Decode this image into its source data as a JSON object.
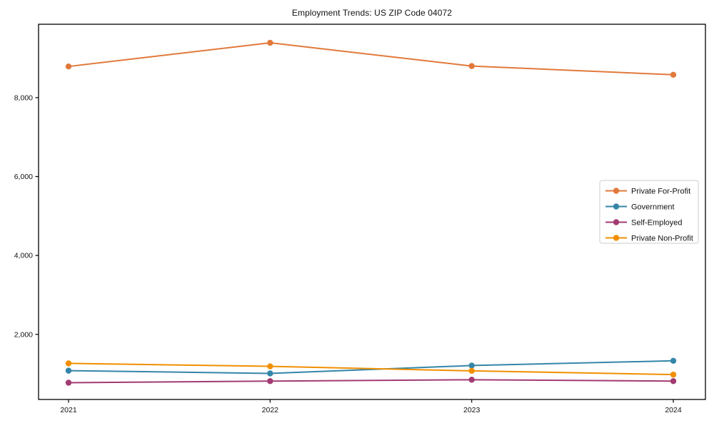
{
  "figure": {
    "background": "#ffffff",
    "text_color": "#111111",
    "axis_color": "#000000",
    "legend_border_color": "#cccccc"
  },
  "chart_data": {
    "type": "line",
    "title": "Employment Trends: US ZIP Code 04072",
    "categories": [
      "2021",
      "2022",
      "2023",
      "2024"
    ],
    "series": [
      {
        "name": "Private For-Profit",
        "color": "#E1793B",
        "values": [
          8790,
          9390,
          8800,
          8580
        ]
      },
      {
        "name": "Government",
        "color": "#3486A8",
        "values": [
          1080,
          1010,
          1210,
          1330
        ]
      },
      {
        "name": "Self-Employed",
        "color": "#A23B72",
        "values": [
          775,
          815,
          850,
          815
        ]
      },
      {
        "name": "Private Non-Profit",
        "color": "#F18F01",
        "values": [
          1265,
          1190,
          1075,
          980
        ]
      }
    ],
    "xlabel": "",
    "ylabel": "",
    "ylim": [
      350,
      9860
    ],
    "yticks": [
      2000,
      4000,
      6000,
      8000
    ],
    "ytick_labels": [
      "2,000",
      "4,000",
      "6,000",
      "8,000"
    ],
    "grid": false,
    "legend_position": "center-right",
    "marker": "circle"
  }
}
